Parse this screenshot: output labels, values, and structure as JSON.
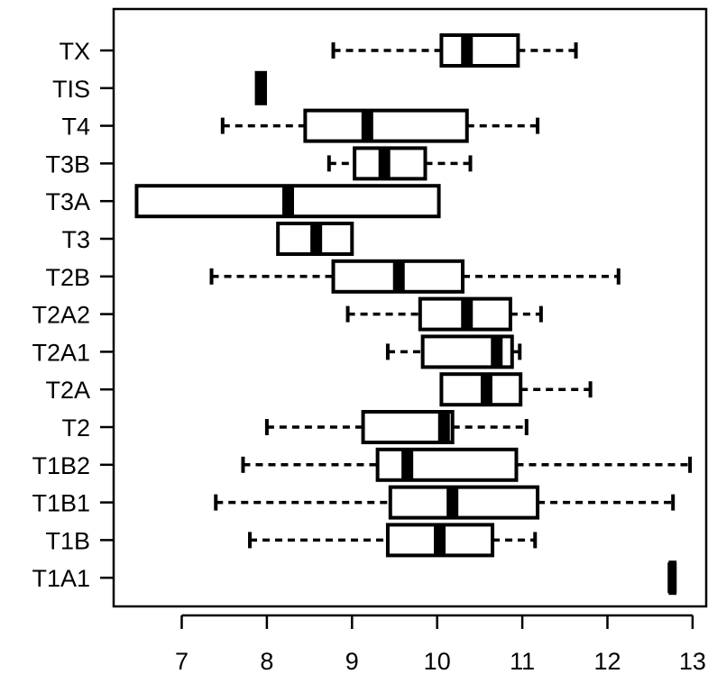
{
  "chart_data": {
    "type": "boxplot",
    "orientation": "horizontal",
    "title": "",
    "xlabel": "",
    "ylabel": "",
    "xlim": [
      6.3,
      13.2
    ],
    "x_ticks": [
      "7",
      "8",
      "9",
      "10",
      "11",
      "12",
      "13"
    ],
    "grid": false,
    "categories": [
      "TX",
      "TIS",
      "T4",
      "T3B",
      "T3A",
      "T3",
      "T2B",
      "T2A2",
      "T2A1",
      "T2A",
      "T2",
      "T1B2",
      "T1B1",
      "T1B",
      "T1A1"
    ],
    "boxes": [
      {
        "category": "TX",
        "min": 8.78,
        "q1": 10.05,
        "median": 10.35,
        "q3": 10.95,
        "max": 11.63
      },
      {
        "category": "TIS",
        "min": 7.88,
        "q1": 7.88,
        "median": 7.93,
        "q3": 7.98,
        "max": 7.98
      },
      {
        "category": "T4",
        "min": 7.48,
        "q1": 8.45,
        "median": 9.18,
        "q3": 10.35,
        "max": 11.18
      },
      {
        "category": "T3B",
        "min": 8.73,
        "q1": 9.03,
        "median": 9.38,
        "q3": 9.86,
        "max": 10.39
      },
      {
        "category": "T3A",
        "min": 6.47,
        "q1": 6.47,
        "median": 8.25,
        "q3": 10.02,
        "max": 10.02
      },
      {
        "category": "T3",
        "min": 8.13,
        "q1": 8.13,
        "median": 8.58,
        "q3": 9.0,
        "max": 9.0
      },
      {
        "category": "T2B",
        "min": 7.35,
        "q1": 8.78,
        "median": 9.55,
        "q3": 10.3,
        "max": 12.13
      },
      {
        "category": "T2A2",
        "min": 8.95,
        "q1": 9.8,
        "median": 10.35,
        "q3": 10.86,
        "max": 11.22
      },
      {
        "category": "T2A1",
        "min": 9.42,
        "q1": 9.83,
        "median": 10.7,
        "q3": 10.88,
        "max": 10.97
      },
      {
        "category": "T2A",
        "min": 10.05,
        "q1": 10.05,
        "median": 10.58,
        "q3": 10.98,
        "max": 11.8
      },
      {
        "category": "T2",
        "min": 8.0,
        "q1": 9.13,
        "median": 10.08,
        "q3": 10.18,
        "max": 11.05
      },
      {
        "category": "T1B2",
        "min": 7.72,
        "q1": 9.3,
        "median": 9.65,
        "q3": 10.93,
        "max": 12.97
      },
      {
        "category": "T1B1",
        "min": 7.4,
        "q1": 9.45,
        "median": 10.18,
        "q3": 11.18,
        "max": 12.77
      },
      {
        "category": "T1B",
        "min": 7.8,
        "q1": 9.42,
        "median": 10.03,
        "q3": 10.65,
        "max": 11.15
      },
      {
        "category": "T1A1",
        "min": 12.74,
        "q1": 12.74,
        "median": 12.76,
        "q3": 12.79,
        "max": 12.79
      }
    ],
    "colors": {
      "box": "#000000",
      "background": "#ffffff"
    }
  }
}
